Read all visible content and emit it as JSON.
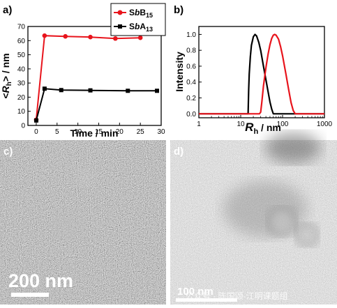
{
  "chart_data": [
    {
      "panel": "a)",
      "type": "line",
      "xlabel": "Time / min",
      "ylabel": "<Rh> / nm",
      "xlim": [
        -2,
        30
      ],
      "ylim": [
        0,
        70
      ],
      "xticks": [
        "0",
        "5",
        "10",
        "15",
        "20",
        "25",
        "30"
      ],
      "yticks": [
        "0",
        "10",
        "20",
        "30",
        "40",
        "50",
        "60",
        "70"
      ],
      "legend": "top-right",
      "series": [
        {
          "name": "SbB15",
          "color": "#e8141c",
          "marker": "circle",
          "x": [
            0,
            2,
            7,
            13,
            19,
            25
          ],
          "y": [
            4,
            63.5,
            63,
            62.5,
            61.5,
            62
          ]
        },
        {
          "name": "SbA13",
          "color": "#000000",
          "marker": "square",
          "x": [
            0,
            2,
            6,
            13,
            22,
            29
          ],
          "y": [
            3.5,
            26,
            25,
            24.8,
            24.5,
            24.5
          ]
        }
      ]
    },
    {
      "panel": "b)",
      "type": "line",
      "xlabel": "Rh / nm",
      "ylabel": "Intensity",
      "xscale": "log",
      "xlim": [
        1,
        1000
      ],
      "ylim": [
        -0.05,
        1.1
      ],
      "xticks": [
        "1",
        "10",
        "100",
        "1000"
      ],
      "yticks": [
        "0.0",
        "0.2",
        "0.4",
        "0.6",
        "0.8",
        "1.0"
      ],
      "series": [
        {
          "color": "#000000",
          "x": [
            1,
            2,
            5,
            10,
            14,
            15,
            15.5,
            16,
            17,
            18,
            20,
            22,
            24,
            27,
            30,
            35,
            40,
            45,
            50,
            55,
            60,
            70,
            100,
            300,
            1000
          ],
          "y": [
            0,
            0,
            0,
            0,
            0,
            0,
            0.3,
            0.5,
            0.72,
            0.86,
            0.97,
            1.0,
            0.98,
            0.9,
            0.8,
            0.6,
            0.43,
            0.28,
            0.15,
            0.06,
            0,
            0,
            0,
            0,
            0
          ]
        },
        {
          "color": "#e8141c",
          "x": [
            1,
            2,
            5,
            10,
            20,
            28,
            30,
            32,
            35,
            40,
            45,
            50,
            55,
            60,
            65,
            70,
            80,
            90,
            100,
            120,
            140,
            160,
            180,
            200,
            300,
            1000
          ],
          "y": [
            0,
            0,
            0,
            0,
            0,
            0,
            0.02,
            0.15,
            0.35,
            0.58,
            0.75,
            0.87,
            0.95,
            0.99,
            1.0,
            0.99,
            0.94,
            0.84,
            0.73,
            0.5,
            0.3,
            0.14,
            0.04,
            0,
            0,
            0
          ]
        }
      ]
    }
  ],
  "images": [
    {
      "panel": "c)",
      "scale_bar": "200 nm"
    },
    {
      "panel": "d)",
      "scale_bar": "100 nm",
      "watermark": "公众号 · 陈国颂-江明课题组"
    }
  ]
}
